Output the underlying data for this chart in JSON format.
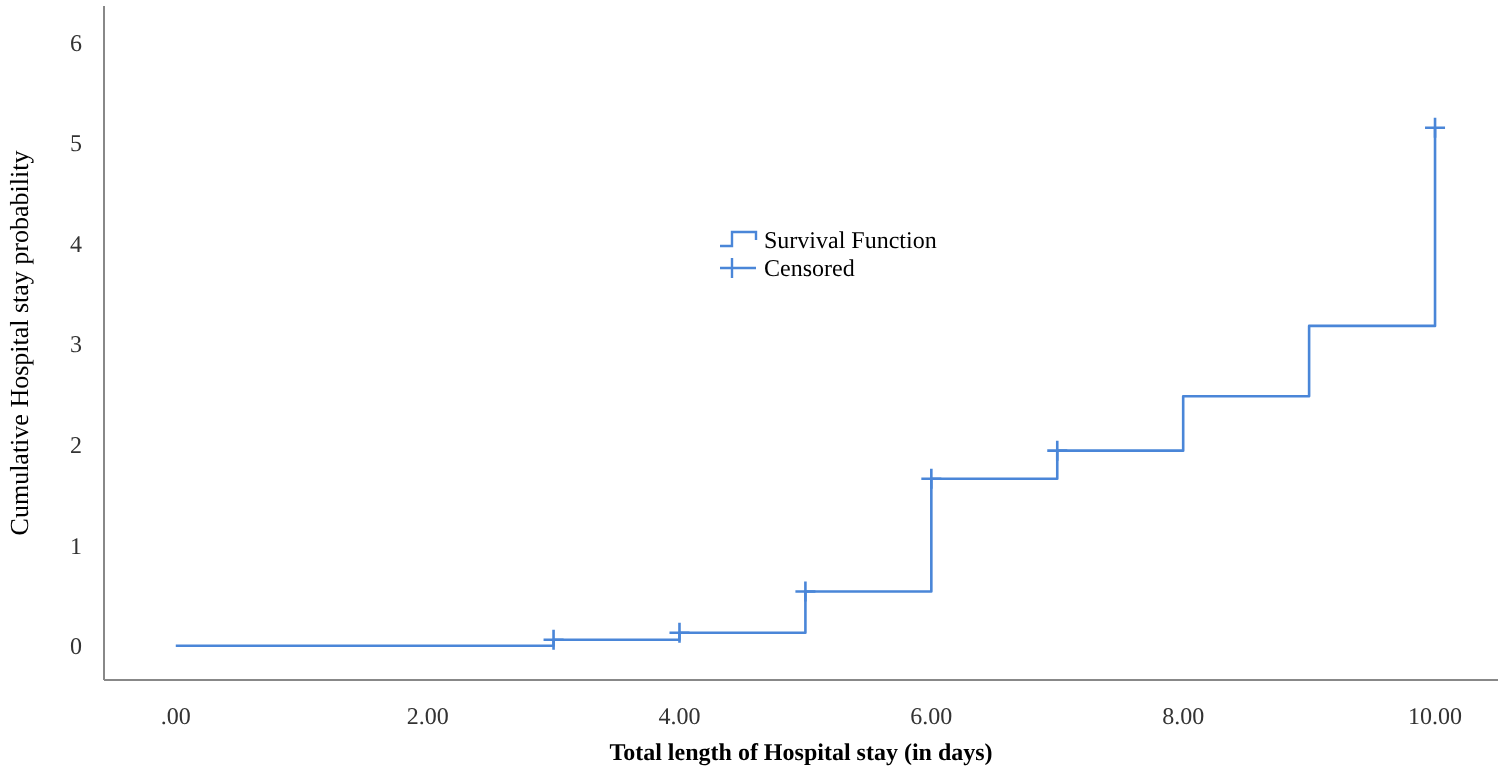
{
  "chart_data": {
    "type": "step",
    "xlabel": "Total length of Hospital stay (in days)",
    "ylabel": "Cumulative Hospital stay probability",
    "xlim": [
      -0.57,
      10.5
    ],
    "ylim": [
      -0.34,
      6.36
    ],
    "xticks": [
      {
        "value": 0,
        "label": ".00"
      },
      {
        "value": 2,
        "label": "2.00"
      },
      {
        "value": 4,
        "label": "4.00"
      },
      {
        "value": 6,
        "label": "6.00"
      },
      {
        "value": 8,
        "label": "8.00"
      },
      {
        "value": 10,
        "label": "10.00"
      }
    ],
    "yticks": [
      0,
      1,
      2,
      3,
      4,
      5,
      6
    ],
    "grid": false,
    "legend": "top",
    "series": [
      {
        "name": "Survival Function",
        "type": "step",
        "color": "#4a86d8",
        "x": [
          0,
          3,
          4,
          5,
          6,
          7,
          8,
          9,
          10
        ],
        "values": [
          0,
          0.06,
          0.13,
          0.54,
          1.66,
          1.94,
          2.48,
          3.18,
          5.15
        ]
      },
      {
        "name": "Censored",
        "type": "scatter",
        "marker": "cross",
        "color": "#4a86d8",
        "x": [
          3,
          4,
          5,
          6,
          7,
          10
        ],
        "values": [
          0.06,
          0.13,
          0.54,
          1.66,
          1.94,
          5.15
        ]
      }
    ]
  }
}
